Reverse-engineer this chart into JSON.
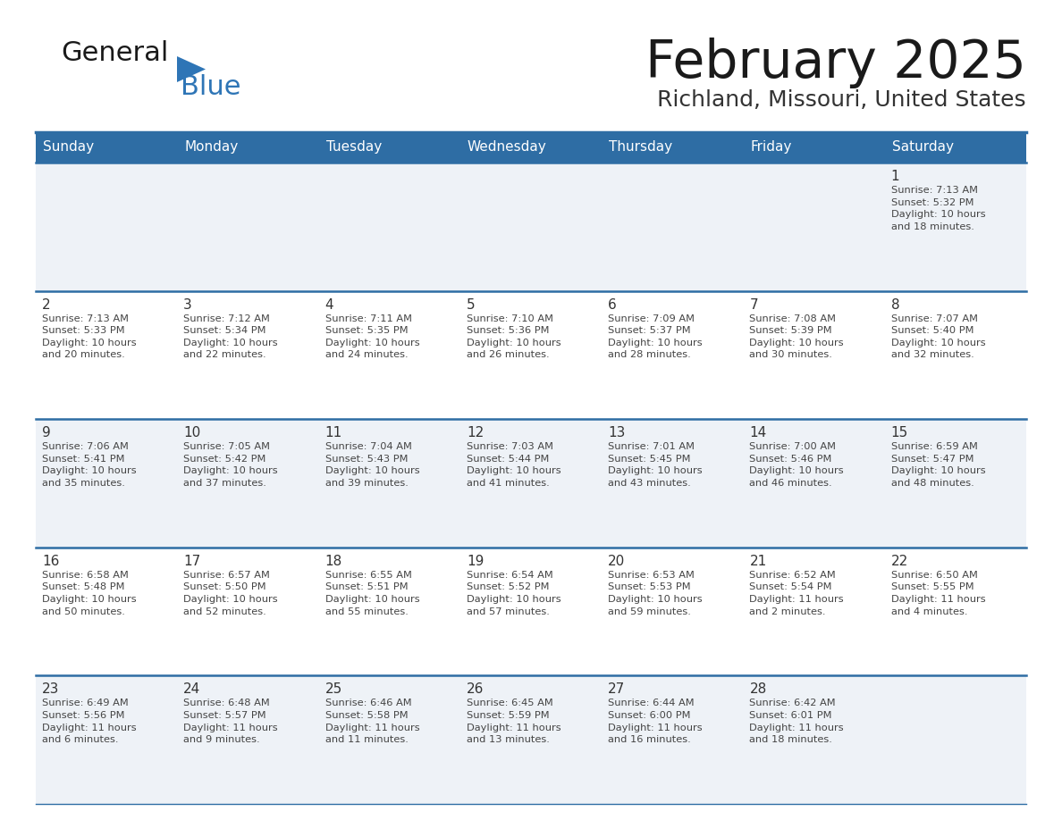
{
  "title": "February 2025",
  "subtitle": "Richland, Missouri, United States",
  "header_bg": "#2e6da4",
  "header_text_color": "#ffffff",
  "cell_bg_odd": "#eef2f7",
  "cell_bg_even": "#ffffff",
  "divider_color": "#2e6da4",
  "text_color": "#444444",
  "day_num_color": "#333333",
  "days_of_week": [
    "Sunday",
    "Monday",
    "Tuesday",
    "Wednesday",
    "Thursday",
    "Friday",
    "Saturday"
  ],
  "weeks": [
    [
      {
        "day": "",
        "info": ""
      },
      {
        "day": "",
        "info": ""
      },
      {
        "day": "",
        "info": ""
      },
      {
        "day": "",
        "info": ""
      },
      {
        "day": "",
        "info": ""
      },
      {
        "day": "",
        "info": ""
      },
      {
        "day": "1",
        "info": "Sunrise: 7:13 AM\nSunset: 5:32 PM\nDaylight: 10 hours\nand 18 minutes."
      }
    ],
    [
      {
        "day": "2",
        "info": "Sunrise: 7:13 AM\nSunset: 5:33 PM\nDaylight: 10 hours\nand 20 minutes."
      },
      {
        "day": "3",
        "info": "Sunrise: 7:12 AM\nSunset: 5:34 PM\nDaylight: 10 hours\nand 22 minutes."
      },
      {
        "day": "4",
        "info": "Sunrise: 7:11 AM\nSunset: 5:35 PM\nDaylight: 10 hours\nand 24 minutes."
      },
      {
        "day": "5",
        "info": "Sunrise: 7:10 AM\nSunset: 5:36 PM\nDaylight: 10 hours\nand 26 minutes."
      },
      {
        "day": "6",
        "info": "Sunrise: 7:09 AM\nSunset: 5:37 PM\nDaylight: 10 hours\nand 28 minutes."
      },
      {
        "day": "7",
        "info": "Sunrise: 7:08 AM\nSunset: 5:39 PM\nDaylight: 10 hours\nand 30 minutes."
      },
      {
        "day": "8",
        "info": "Sunrise: 7:07 AM\nSunset: 5:40 PM\nDaylight: 10 hours\nand 32 minutes."
      }
    ],
    [
      {
        "day": "9",
        "info": "Sunrise: 7:06 AM\nSunset: 5:41 PM\nDaylight: 10 hours\nand 35 minutes."
      },
      {
        "day": "10",
        "info": "Sunrise: 7:05 AM\nSunset: 5:42 PM\nDaylight: 10 hours\nand 37 minutes."
      },
      {
        "day": "11",
        "info": "Sunrise: 7:04 AM\nSunset: 5:43 PM\nDaylight: 10 hours\nand 39 minutes."
      },
      {
        "day": "12",
        "info": "Sunrise: 7:03 AM\nSunset: 5:44 PM\nDaylight: 10 hours\nand 41 minutes."
      },
      {
        "day": "13",
        "info": "Sunrise: 7:01 AM\nSunset: 5:45 PM\nDaylight: 10 hours\nand 43 minutes."
      },
      {
        "day": "14",
        "info": "Sunrise: 7:00 AM\nSunset: 5:46 PM\nDaylight: 10 hours\nand 46 minutes."
      },
      {
        "day": "15",
        "info": "Sunrise: 6:59 AM\nSunset: 5:47 PM\nDaylight: 10 hours\nand 48 minutes."
      }
    ],
    [
      {
        "day": "16",
        "info": "Sunrise: 6:58 AM\nSunset: 5:48 PM\nDaylight: 10 hours\nand 50 minutes."
      },
      {
        "day": "17",
        "info": "Sunrise: 6:57 AM\nSunset: 5:50 PM\nDaylight: 10 hours\nand 52 minutes."
      },
      {
        "day": "18",
        "info": "Sunrise: 6:55 AM\nSunset: 5:51 PM\nDaylight: 10 hours\nand 55 minutes."
      },
      {
        "day": "19",
        "info": "Sunrise: 6:54 AM\nSunset: 5:52 PM\nDaylight: 10 hours\nand 57 minutes."
      },
      {
        "day": "20",
        "info": "Sunrise: 6:53 AM\nSunset: 5:53 PM\nDaylight: 10 hours\nand 59 minutes."
      },
      {
        "day": "21",
        "info": "Sunrise: 6:52 AM\nSunset: 5:54 PM\nDaylight: 11 hours\nand 2 minutes."
      },
      {
        "day": "22",
        "info": "Sunrise: 6:50 AM\nSunset: 5:55 PM\nDaylight: 11 hours\nand 4 minutes."
      }
    ],
    [
      {
        "day": "23",
        "info": "Sunrise: 6:49 AM\nSunset: 5:56 PM\nDaylight: 11 hours\nand 6 minutes."
      },
      {
        "day": "24",
        "info": "Sunrise: 6:48 AM\nSunset: 5:57 PM\nDaylight: 11 hours\nand 9 minutes."
      },
      {
        "day": "25",
        "info": "Sunrise: 6:46 AM\nSunset: 5:58 PM\nDaylight: 11 hours\nand 11 minutes."
      },
      {
        "day": "26",
        "info": "Sunrise: 6:45 AM\nSunset: 5:59 PM\nDaylight: 11 hours\nand 13 minutes."
      },
      {
        "day": "27",
        "info": "Sunrise: 6:44 AM\nSunset: 6:00 PM\nDaylight: 11 hours\nand 16 minutes."
      },
      {
        "day": "28",
        "info": "Sunrise: 6:42 AM\nSunset: 6:01 PM\nDaylight: 11 hours\nand 18 minutes."
      },
      {
        "day": "",
        "info": ""
      }
    ]
  ],
  "logo_text_general": "General",
  "logo_text_blue": "Blue",
  "logo_color_general": "#1a1a1a",
  "logo_color_blue": "#2e75b6",
  "logo_triangle_color": "#2e75b6",
  "title_color": "#1a1a1a",
  "subtitle_color": "#333333"
}
